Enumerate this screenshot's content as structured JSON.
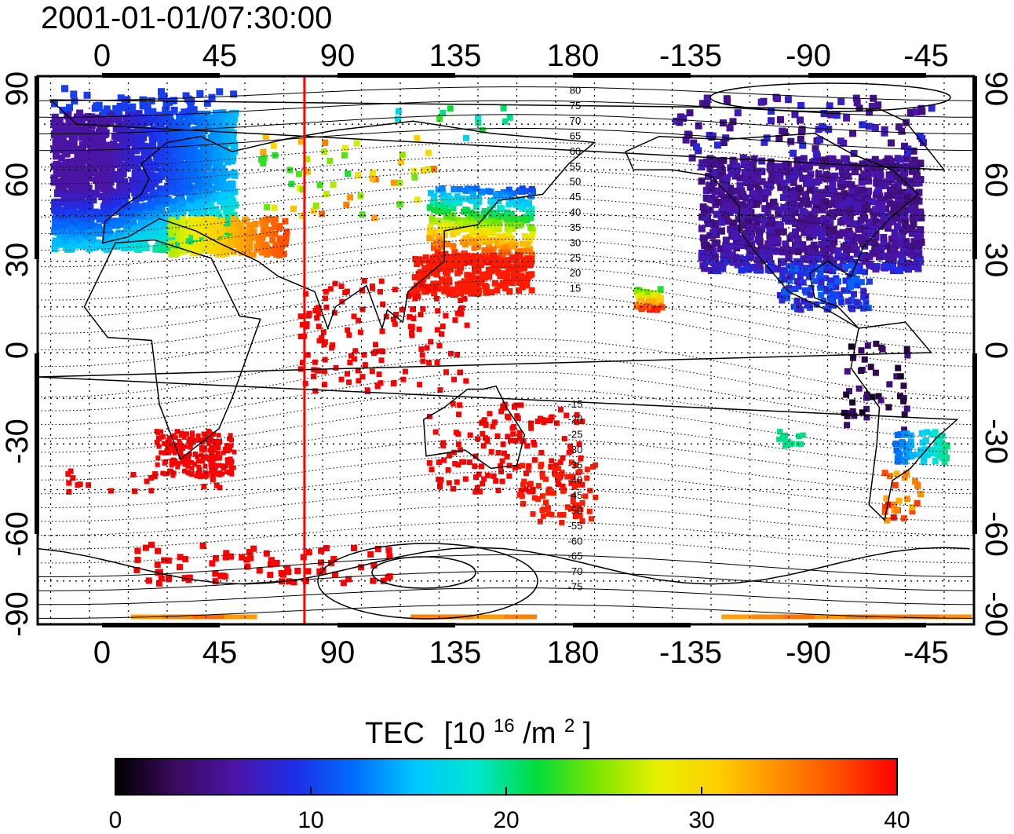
{
  "title": "2001-01-01/07:30:00",
  "map": {
    "x_ticks": [
      "0",
      "45",
      "90",
      "135",
      "180",
      "-135",
      "-90",
      "-45"
    ],
    "y_ticks": [
      "90",
      "60",
      "30",
      "0",
      "-30",
      "-60",
      "-90"
    ],
    "contour_labels": [
      "80",
      "75",
      "70",
      "65",
      "60",
      "55",
      "50",
      "45",
      "40",
      "35",
      "30",
      "25",
      "20",
      "15",
      "-15",
      "-20",
      "-25",
      "-30",
      "-35",
      "-40",
      "-45",
      "-50",
      "-55",
      "-60",
      "-65",
      "-70",
      "-75"
    ],
    "terminator_longitude": 68,
    "colors": {
      "frame": "#000000",
      "grid": "#000000",
      "coast": "#000000",
      "terminator": "#ff0000"
    }
  },
  "colorbar": {
    "title": "TEC",
    "unit_base": "[10",
    "unit_exp": "16",
    "unit_mid": "/m",
    "unit_exp2": "2",
    "unit_end": "]",
    "tick_labels": [
      "0",
      "10",
      "20",
      "30",
      "40"
    ],
    "range": [
      0,
      40
    ],
    "colormap": [
      "#000000",
      "#3a0a5e",
      "#4b14a8",
      "#1e2ee8",
      "#0070ff",
      "#00c8ff",
      "#00e6d0",
      "#00dc3c",
      "#7ae600",
      "#e6f000",
      "#ffd000",
      "#ff9000",
      "#ff5000",
      "#ff0000"
    ]
  }
}
